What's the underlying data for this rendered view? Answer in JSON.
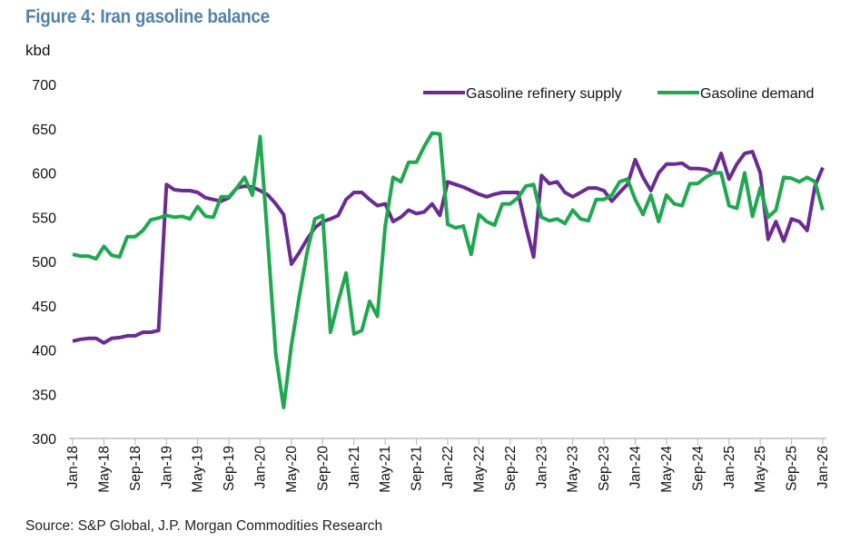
{
  "title": "Figure 4: Iran gasoline balance",
  "source": "Source: S&P Global, J.P. Morgan Commodities Research",
  "chart_data": {
    "type": "line",
    "title": "Figure 4: Iran gasoline balance",
    "ylabel": "kbd",
    "xlabel": "",
    "ylim": [
      300,
      700
    ],
    "yticks": [
      300,
      350,
      400,
      450,
      500,
      550,
      600,
      650,
      700
    ],
    "xrange": [
      "Jan-18",
      "Jan-26"
    ],
    "frequency": "monthly",
    "xtick_labels": [
      "Jan-18",
      "May-18",
      "Sep-18",
      "Jan-19",
      "May-19",
      "Sep-19",
      "Jan-20",
      "May-20",
      "Sep-20",
      "Jan-21",
      "May-21",
      "Sep-21",
      "Jan-22",
      "May-22",
      "Sep-22",
      "Jan-23",
      "May-23",
      "Sep-23",
      "Jan-24",
      "May-24",
      "Sep-24",
      "Jan-25",
      "May-25",
      "Sep-25",
      "Jan-26"
    ],
    "grid": false,
    "legend_position": "top-right",
    "series": [
      {
        "name": "Gasoline  refinery supply",
        "color": "#6a2c91",
        "values": [
          410,
          412,
          413,
          413,
          408,
          413,
          414,
          416,
          416,
          420,
          420,
          422,
          587,
          581,
          580,
          580,
          578,
          572,
          570,
          568,
          572,
          583,
          585,
          584,
          580,
          575,
          565,
          553,
          497,
          510,
          525,
          538,
          545,
          548,
          552,
          570,
          578,
          578,
          570,
          563,
          565,
          545,
          550,
          558,
          554,
          556,
          565,
          552,
          590,
          587,
          584,
          580,
          576,
          573,
          576,
          578,
          578,
          578,
          540,
          505,
          597,
          588,
          590,
          578,
          573,
          578,
          583,
          583,
          580,
          568,
          578,
          587,
          615,
          595,
          580,
          600,
          610,
          610,
          611,
          605,
          605,
          604,
          600,
          622,
          593,
          610,
          622,
          624,
          600,
          525,
          545,
          523,
          548,
          545,
          535,
          585,
          606
        ]
      },
      {
        "name": "Gasoline demand",
        "color": "#1fa84f",
        "values": [
          508,
          506,
          506,
          503,
          517,
          507,
          505,
          528,
          528,
          535,
          547,
          549,
          552,
          550,
          551,
          548,
          562,
          551,
          550,
          573,
          573,
          583,
          595,
          575,
          641,
          520,
          395,
          335,
          405,
          460,
          510,
          548,
          552,
          420,
          455,
          487,
          418,
          422,
          455,
          438,
          540,
          595,
          590,
          612,
          612,
          630,
          645,
          644,
          542,
          538,
          540,
          508,
          553,
          545,
          541,
          565,
          565,
          572,
          585,
          587,
          550,
          546,
          548,
          543,
          558,
          548,
          546,
          570,
          570,
          575,
          590,
          593,
          570,
          553,
          575,
          545,
          575,
          565,
          563,
          588,
          588,
          595,
          600,
          600,
          563,
          560,
          600,
          551,
          583,
          550,
          558,
          595,
          594,
          590,
          595,
          590,
          558
        ]
      }
    ]
  }
}
